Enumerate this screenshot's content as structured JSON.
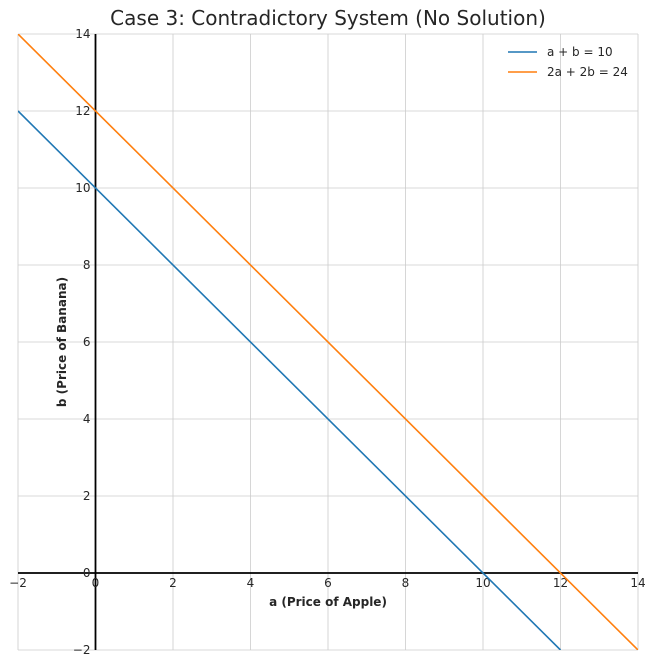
{
  "chart_data": {
    "type": "line",
    "title": "Case 3: Contradictory System (No Solution)",
    "xlabel": "a (Price of Apple)",
    "ylabel": "b (Price of Banana)",
    "xlim": [
      -2,
      14
    ],
    "ylim": [
      -2,
      14
    ],
    "xticks": [
      -2,
      0,
      2,
      4,
      6,
      8,
      10,
      12,
      14
    ],
    "yticks": [
      -2,
      0,
      2,
      4,
      6,
      8,
      10,
      12,
      14
    ],
    "grid": true,
    "legend_position": "top-right",
    "series": [
      {
        "name": "a + b = 10",
        "color": "#1f77b4",
        "x": [
          -2,
          12
        ],
        "y": [
          12,
          -2
        ]
      },
      {
        "name": "2a + 2b = 24",
        "color": "#ff7f0e",
        "x": [
          -2,
          14
        ],
        "y": [
          14,
          -2
        ]
      }
    ]
  }
}
